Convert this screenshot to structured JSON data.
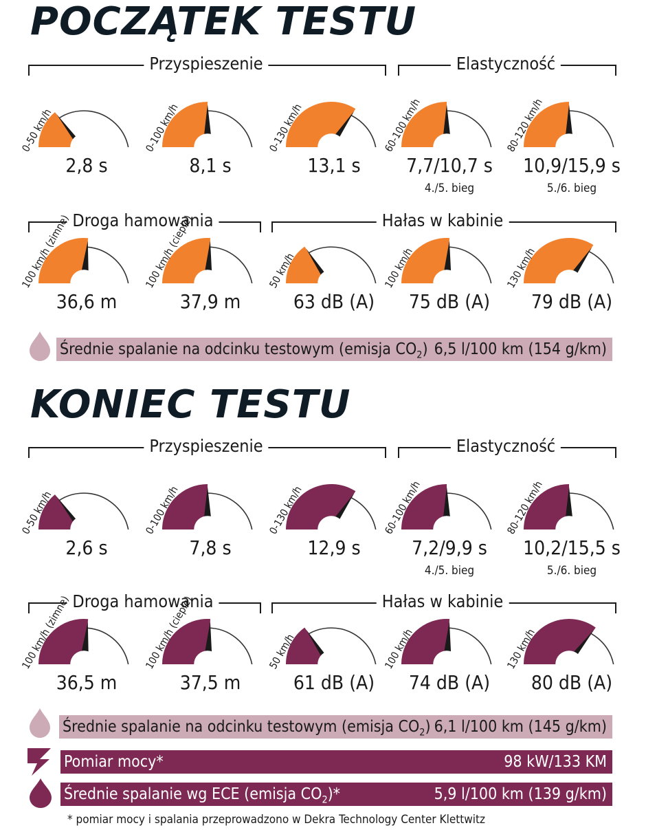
{
  "colors": {
    "start_fill": "#f2812e",
    "end_fill": "#7d2953",
    "needle": "#1a1a1a",
    "light_bar": "#ccaab6",
    "dark_bar": "#7d2953",
    "title": "#0f1c26"
  },
  "sections": [
    {
      "title": "POCZĄTEK TESTU",
      "groups": {
        "accel": "Przyspieszenie",
        "elastic": "Elastyczność",
        "braking": "Droga hamowania",
        "noise": "Hałas w kabinie"
      },
      "gauges_row1": [
        {
          "label": "0-50 km/h",
          "value": "2,8 s",
          "level": 0.28
        },
        {
          "label": "0-100 km/h",
          "value": "8,1 s",
          "level": 0.5
        },
        {
          "label": "0-130 km/h",
          "value": "13,1 s",
          "level": 0.68
        },
        {
          "label": "60-100 km/h",
          "value": "7,7/10,7 s",
          "sub": "4./5. bieg",
          "level": 0.5
        },
        {
          "label": "80-120 km/h",
          "value": "10,9/15,9 s",
          "sub": "5./6. bieg",
          "level": 0.5
        }
      ],
      "gauges_row2": [
        {
          "label": "100 km/h (zimne)",
          "value": "36,6 m",
          "level": 0.53
        },
        {
          "label": "100 km/h (ciepłe)",
          "value": "37,9 m",
          "level": 0.52
        },
        {
          "label": "50 km/h",
          "value": "63 dB (A)",
          "level": 0.3
        },
        {
          "label": "100 km/h",
          "value": "75 dB (A)",
          "level": 0.52
        },
        {
          "label": "130 km/h",
          "value": "79 dB (A)",
          "level": 0.68
        }
      ],
      "consumption": {
        "label": "Średnie spalanie na odcinku testowym (emisja CO",
        "sub": "2",
        "suffix": ")",
        "value": "6,5 l/100 km (154 g/km)"
      }
    },
    {
      "title": "KONIEC TESTU",
      "groups": {
        "accel": "Przyspieszenie",
        "elastic": "Elastyczność",
        "braking": "Droga hamowania",
        "noise": "Hałas w kabinie"
      },
      "gauges_row1": [
        {
          "label": "0-50 km/h",
          "value": "2,6 s",
          "level": 0.28
        },
        {
          "label": "0-100 km/h",
          "value": "7,8 s",
          "level": 0.5
        },
        {
          "label": "0-130 km/h",
          "value": "12,9 s",
          "level": 0.68
        },
        {
          "label": "60-100 km/h",
          "value": "7,2/9,9 s",
          "sub": "4./5. bieg",
          "level": 0.5
        },
        {
          "label": "80-120 km/h",
          "value": "10,2/15,5 s",
          "sub": "5./6. bieg",
          "level": 0.5
        }
      ],
      "gauges_row2": [
        {
          "label": "100 km/h (zimne)",
          "value": "36,5 m",
          "level": 0.53
        },
        {
          "label": "100 km/h (ciepłe)",
          "value": "37,5 m",
          "level": 0.52
        },
        {
          "label": "50 km/h",
          "value": "61 dB (A)",
          "level": 0.3
        },
        {
          "label": "100 km/h",
          "value": "74 dB (A)",
          "level": 0.52
        },
        {
          "label": "130 km/h",
          "value": "80 dB (A)",
          "level": 0.7
        }
      ],
      "consumption": {
        "label": "Średnie spalanie na odcinku testowym (emisja CO",
        "sub": "2",
        "suffix": ")",
        "value": "6,1 l/100 km (145 g/km)"
      }
    }
  ],
  "power": {
    "label": "Pomiar mocy*",
    "value": "98 kW/133 KM",
    "icon": "lightning-icon"
  },
  "ece": {
    "label": "Średnie spalanie wg ECE (emisja CO",
    "sub": "2",
    "suffix": ")*",
    "value": "5,9 l/100 km (139 g/km)",
    "icon": "drop-icon"
  },
  "footnote": "* pomiar mocy i spalania przeprowadzono w Dekra Technology Center Klettwitz"
}
